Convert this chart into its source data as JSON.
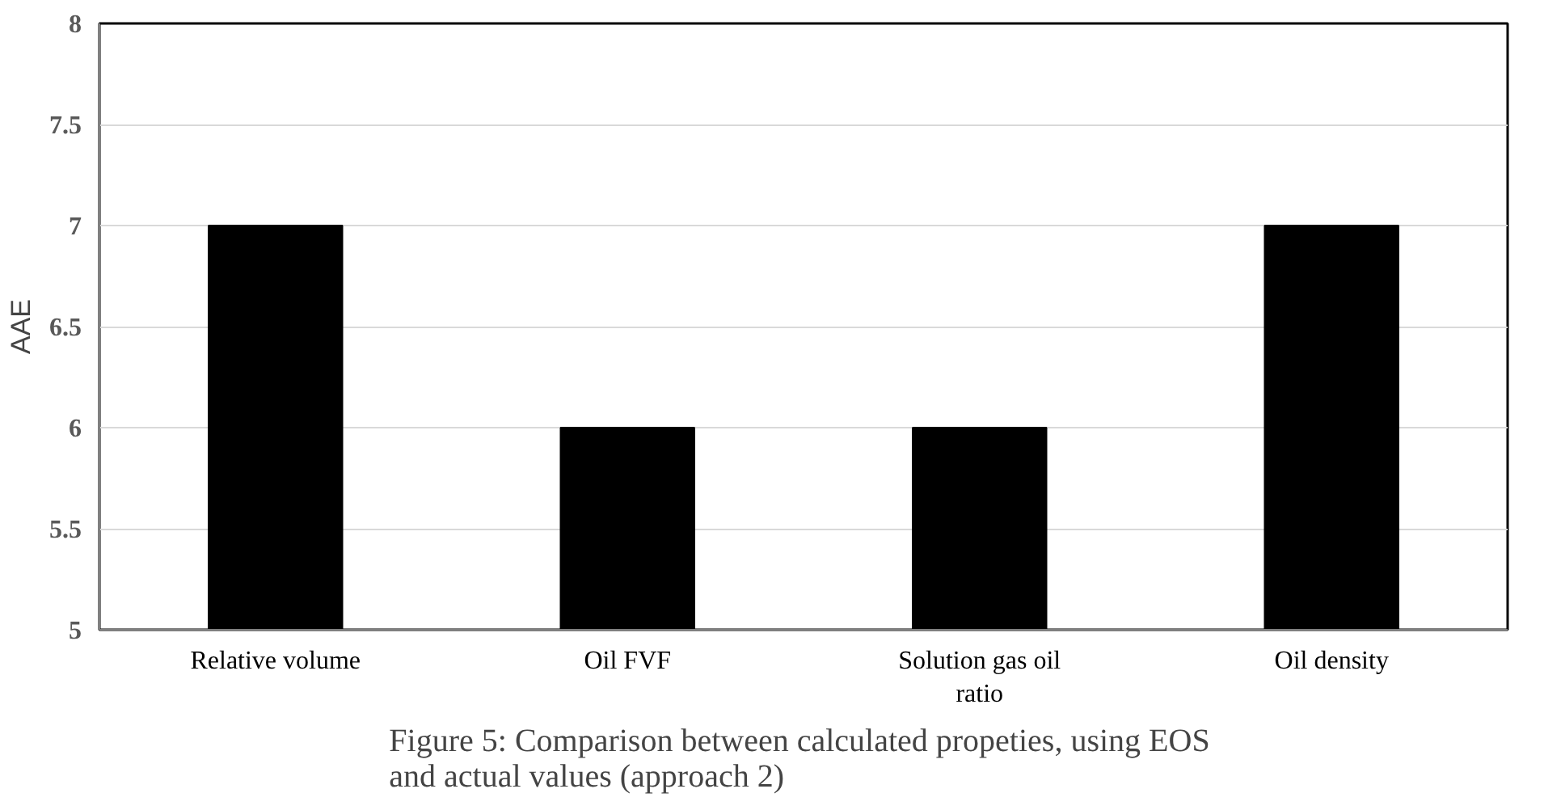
{
  "chart_data": {
    "type": "bar",
    "title": "Figure 5:  Comparison between calculated propeties, using EOS\nand actual values (approach 2)",
    "ylabel": "AAE",
    "categories": [
      "Relative volume",
      "Oil FVF",
      "Solution gas oil\nratio",
      "Oil density"
    ],
    "values": [
      7,
      6,
      6,
      7
    ],
    "color": "#000000",
    "ylim": [
      5,
      8
    ],
    "yticks": [
      5,
      5.5,
      6,
      6.5,
      7,
      7.5,
      8
    ],
    "grid": "y"
  }
}
